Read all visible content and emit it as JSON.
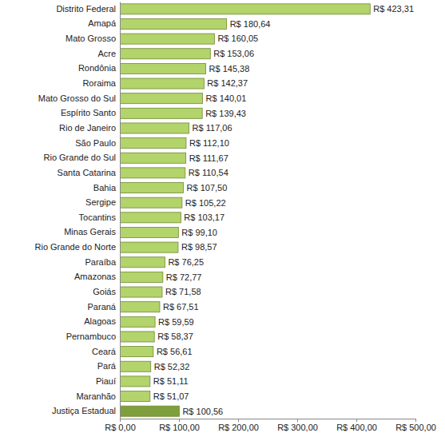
{
  "chart_data": {
    "type": "bar",
    "orientation": "horizontal",
    "categories": [
      "Distrito Federal",
      "Amapá",
      "Mato Grosso",
      "Acre",
      "Rondônia",
      "Roraima",
      "Mato Grosso do Sul",
      "Espírito Santo",
      "Rio de Janeiro",
      "São Paulo",
      "Rio Grande do Sul",
      "Santa Catarina",
      "Bahia",
      "Sergipe",
      "Tocantins",
      "Minas Gerais",
      "Rio Grande do Norte",
      "Paraíba",
      "Amazonas",
      "Goiás",
      "Paraná",
      "Alagoas",
      "Pernambuco",
      "Ceará",
      "Pará",
      "Piauí",
      "Maranhão",
      "Justiça Estadual"
    ],
    "values": [
      423.31,
      180.64,
      160.05,
      153.06,
      145.38,
      142.37,
      140.01,
      139.43,
      117.06,
      112.1,
      111.67,
      110.54,
      107.5,
      105.22,
      103.17,
      99.1,
      98.57,
      76.25,
      72.77,
      71.58,
      67.51,
      59.59,
      58.37,
      56.61,
      52.32,
      51.11,
      51.07,
      100.56
    ],
    "value_labels": [
      "R$ 423,31",
      "R$ 180,64",
      "R$ 160,05",
      "R$ 153,06",
      "R$ 145,38",
      "R$ 142,37",
      "R$ 140,01",
      "R$ 139,43",
      "R$ 117,06",
      "R$ 112,10",
      "R$ 111,67",
      "R$ 110,54",
      "R$ 107,50",
      "R$ 105,22",
      "R$ 103,17",
      "R$ 99,10",
      "R$ 98,57",
      "R$ 76,25",
      "R$ 72,77",
      "R$ 71,58",
      "R$ 67,51",
      "R$ 59,59",
      "R$ 58,37",
      "R$ 56,61",
      "R$ 52,32",
      "R$ 51,11",
      "R$ 51,07",
      "R$ 100,56"
    ],
    "colors": [
      "#b3d36b",
      "#b3d36b",
      "#b3d36b",
      "#b3d36b",
      "#b3d36b",
      "#b3d36b",
      "#b3d36b",
      "#b3d36b",
      "#b3d36b",
      "#b3d36b",
      "#b3d36b",
      "#b3d36b",
      "#b3d36b",
      "#b3d36b",
      "#b3d36b",
      "#b3d36b",
      "#b3d36b",
      "#b3d36b",
      "#b3d36b",
      "#b3d36b",
      "#b3d36b",
      "#b3d36b",
      "#b3d36b",
      "#b3d36b",
      "#b3d36b",
      "#b3d36b",
      "#b3d36b",
      "#7f9f3c"
    ],
    "data_labels": true,
    "grid": false,
    "xlim": [
      0,
      500
    ],
    "xticks": [
      {
        "value": 0,
        "label": "R$ 0,00"
      },
      {
        "value": 100,
        "label": "R$ 100,00"
      },
      {
        "value": 200,
        "label": "R$ 200,00"
      },
      {
        "value": 300,
        "label": "R$ 300,00"
      },
      {
        "value": 400,
        "label": "R$ 400,00"
      },
      {
        "value": 500,
        "label": "R$ 500,00"
      }
    ]
  }
}
